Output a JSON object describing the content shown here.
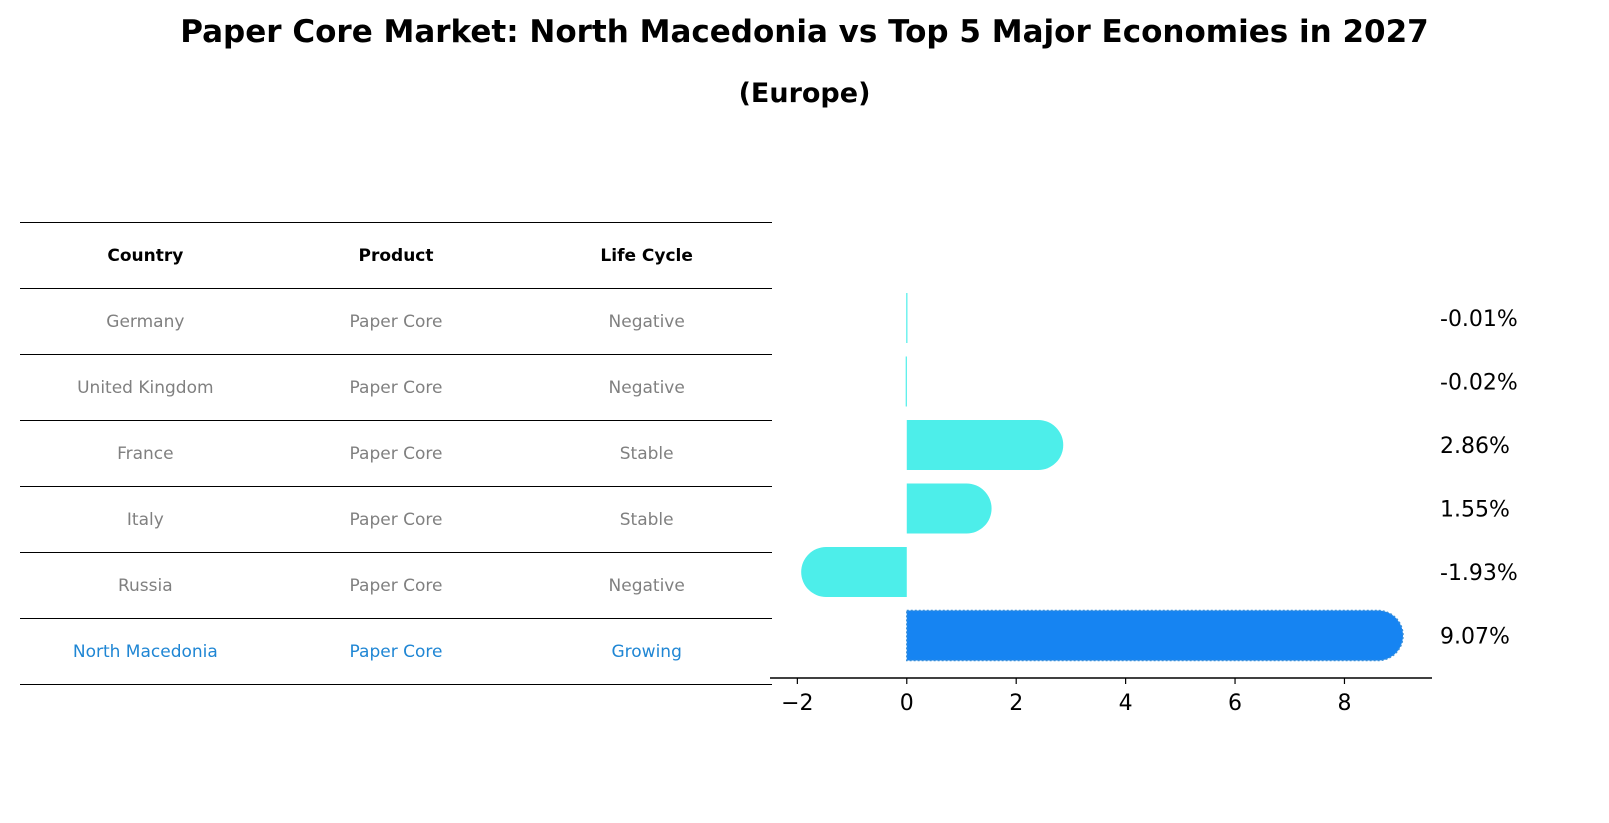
{
  "title": "Paper Core Market: North Macedonia vs Top 5 Major Economies in 2027",
  "subtitle": "(Europe)",
  "table": {
    "headers": [
      "Country",
      "Product",
      "Life Cycle"
    ],
    "rows": [
      {
        "country": "Germany",
        "product": "Paper Core",
        "life_cycle": "Negative"
      },
      {
        "country": "United Kingdom",
        "product": "Paper Core",
        "life_cycle": "Negative"
      },
      {
        "country": "France",
        "product": "Paper Core",
        "life_cycle": "Stable"
      },
      {
        "country": "Italy",
        "product": "Paper Core",
        "life_cycle": "Stable"
      },
      {
        "country": "Russia",
        "product": "Paper Core",
        "life_cycle": "Negative"
      },
      {
        "country": "North Macedonia",
        "product": "Paper Core",
        "life_cycle": "Growing"
      }
    ]
  },
  "colors": {
    "bar": "#4deeea",
    "highlight": "#1684f2",
    "highlight_text": "#1f86d4"
  },
  "chart_data": {
    "type": "bar",
    "orientation": "horizontal",
    "categories": [
      "Germany",
      "United Kingdom",
      "France",
      "Italy",
      "Russia",
      "North Macedonia"
    ],
    "values": [
      -0.01,
      -0.02,
      2.86,
      1.55,
      -1.93,
      9.07
    ],
    "value_labels": [
      "-0.01%",
      "-0.02%",
      "2.86%",
      "1.55%",
      "-1.93%",
      "9.07%"
    ],
    "highlight": "North Macedonia",
    "xlim": [
      -2.5,
      9.6
    ],
    "xticks": [
      -2,
      0,
      2,
      4,
      6,
      8
    ],
    "xtick_labels": [
      "−2",
      "0",
      "2",
      "4",
      "6",
      "8"
    ],
    "xlabel": "",
    "ylabel": ""
  }
}
